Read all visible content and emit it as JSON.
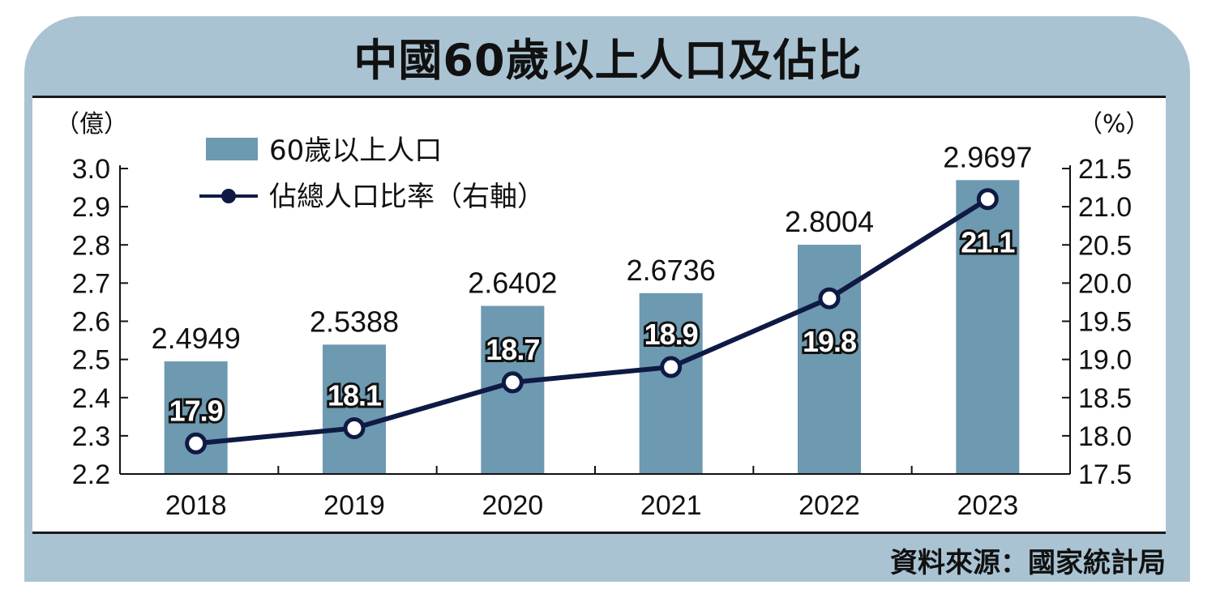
{
  "title": "中國60歲以上人口及佔比",
  "source": "資料來源：國家統計局",
  "colors": {
    "bar": "#6d99b1",
    "line": "#0f1a44",
    "frame": "#a9c3d3"
  },
  "chart_data": {
    "type": "bar+line",
    "categories": [
      "2018",
      "2019",
      "2020",
      "2021",
      "2022",
      "2023"
    ],
    "series": [
      {
        "name": "60歲以上人口",
        "type": "bar",
        "axis": "left",
        "values": [
          2.4949,
          2.5388,
          2.6402,
          2.6736,
          2.8004,
          2.9697
        ],
        "labels": [
          "2.4949",
          "2.5388",
          "2.6402",
          "2.6736",
          "2.8004",
          "2.9697"
        ]
      },
      {
        "name": "佔總人口比率（右軸）",
        "type": "line",
        "axis": "right",
        "values": [
          17.9,
          18.1,
          18.7,
          18.9,
          19.8,
          21.1
        ],
        "labels": [
          "17.9",
          "18.1",
          "18.7",
          "18.9",
          "19.8",
          "21.1"
        ]
      }
    ],
    "left_axis": {
      "unit": "（億）",
      "ylim": [
        2.2,
        3.0
      ],
      "ticks": [
        "2.2",
        "2.3",
        "2.4",
        "2.5",
        "2.6",
        "2.7",
        "2.8",
        "2.9",
        "3.0"
      ]
    },
    "right_axis": {
      "unit": "（%）",
      "ylim": [
        17.5,
        21.5
      ],
      "ticks": [
        "17.5",
        "18.0",
        "18.5",
        "19.0",
        "19.5",
        "20.0",
        "20.5",
        "21.0",
        "21.5"
      ]
    },
    "legend": {
      "placement": "top-left",
      "entries": [
        "60歲以上人口",
        "佔總人口比率（右軸）"
      ]
    },
    "grid": false
  }
}
